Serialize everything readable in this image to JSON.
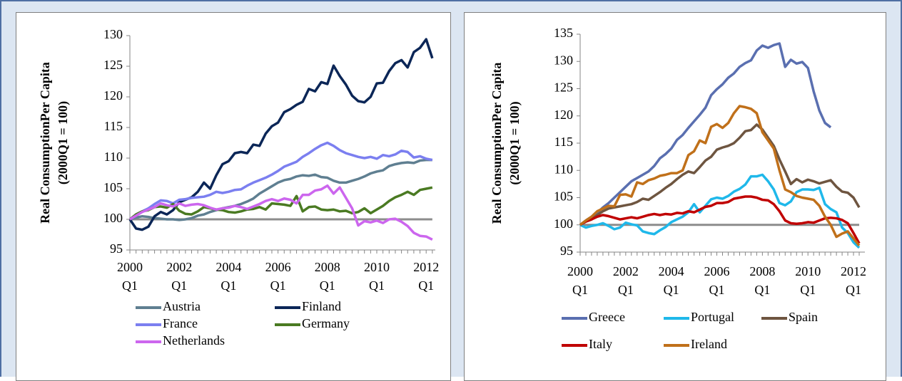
{
  "chart_data": [
    {
      "type": "line",
      "y_label": [
        "Real ConsumptionPer Capita",
        "(2000Q1 = 100)"
      ],
      "categories": [
        "2000\nQ1",
        null,
        null,
        null,
        null,
        null,
        null,
        null,
        "2002\nQ1",
        null,
        null,
        null,
        null,
        null,
        null,
        null,
        "2004\nQ1",
        null,
        null,
        null,
        null,
        null,
        null,
        null,
        "2006\nQ1",
        null,
        null,
        null,
        null,
        null,
        null,
        null,
        "2008\nQ1",
        null,
        null,
        null,
        null,
        null,
        null,
        null,
        "2010\nQ1",
        null,
        null,
        null,
        null,
        null,
        null,
        null,
        "2012\nQ1",
        null
      ],
      "ylim": [
        95,
        130
      ],
      "yticks": [
        95,
        100,
        105,
        110,
        115,
        120,
        125,
        130
      ],
      "reference_line": 100,
      "reference_color": "#8c8c8c",
      "series": [
        {
          "name": "Austria",
          "color": "#5f7f91",
          "values": [
            100,
            100.3,
            100.5,
            100.4,
            100.2,
            100.1,
            100.0,
            100.0,
            99.9,
            100.0,
            100.2,
            100.6,
            100.8,
            101.2,
            101.5,
            101.8,
            102.0,
            102.2,
            102.5,
            102.9,
            103.4,
            104.2,
            104.8,
            105.4,
            106.0,
            106.4,
            106.6,
            107.0,
            107.2,
            107.1,
            107.3,
            106.9,
            106.8,
            106.3,
            106.0,
            106.0,
            106.3,
            106.6,
            107.0,
            107.5,
            107.8,
            108.0,
            108.7,
            109.0,
            109.2,
            109.3,
            109.2,
            109.6,
            109.7,
            109.7
          ]
        },
        {
          "name": "Finland",
          "color": "#0b2657",
          "values": [
            100,
            98.5,
            98.3,
            98.8,
            100.5,
            101.2,
            100.8,
            101.5,
            102.8,
            103.2,
            103.6,
            104.5,
            106.0,
            105.0,
            107.2,
            109.0,
            109.5,
            110.8,
            111.0,
            110.8,
            112.2,
            112.0,
            114.0,
            115.2,
            115.8,
            117.5,
            118.0,
            118.7,
            119.2,
            121.3,
            120.9,
            122.4,
            122.1,
            125.1,
            123.4,
            122.0,
            120.2,
            119.3,
            119.1,
            120.0,
            122.2,
            122.3,
            124.2,
            125.5,
            126.0,
            124.8,
            127.3,
            128.0,
            129.4,
            126.3
          ]
        },
        {
          "name": "France",
          "color": "#7b7ff0",
          "values": [
            100,
            100.8,
            101.3,
            101.8,
            102.5,
            103.1,
            103.0,
            102.6,
            103.2,
            103.3,
            103.5,
            103.6,
            103.7,
            104.0,
            104.5,
            104.3,
            104.5,
            104.8,
            104.9,
            105.5,
            106.0,
            106.4,
            106.8,
            107.3,
            107.9,
            108.6,
            109.0,
            109.4,
            110.2,
            110.8,
            111.5,
            112.1,
            112.5,
            112.0,
            111.3,
            110.8,
            110.5,
            110.2,
            110.0,
            110.2,
            109.9,
            110.5,
            110.3,
            110.6,
            111.2,
            111.0,
            110.1,
            110.3,
            109.9,
            109.7
          ]
        },
        {
          "name": "Germany",
          "color": "#4a7a22",
          "values": [
            100,
            100.8,
            101.3,
            101.5,
            102.0,
            102.1,
            101.9,
            102.5,
            101.4,
            100.9,
            100.8,
            101.3,
            102.0,
            101.8,
            101.6,
            101.5,
            101.2,
            101.1,
            101.3,
            101.6,
            101.7,
            102.0,
            101.6,
            102.6,
            102.5,
            102.4,
            102.2,
            103.8,
            101.3,
            102.0,
            102.1,
            101.6,
            101.5,
            101.6,
            101.3,
            101.4,
            101.0,
            101.2,
            101.8,
            101.0,
            101.6,
            102.2,
            103.0,
            103.6,
            104.0,
            104.5,
            104.0,
            104.8,
            105.0,
            105.2
          ]
        },
        {
          "name": "Netherlands",
          "color": "#cc66ee",
          "values": [
            100,
            100.6,
            101.2,
            101.6,
            102.0,
            102.6,
            102.3,
            102.1,
            102.6,
            102.2,
            102.4,
            102.5,
            102.3,
            101.9,
            101.6,
            101.8,
            101.9,
            102.2,
            102.0,
            101.7,
            102.1,
            102.5,
            103.0,
            103.3,
            103.0,
            103.4,
            103.2,
            102.6,
            104.0,
            104.0,
            104.7,
            104.9,
            105.5,
            104.2,
            105.2,
            103.5,
            101.8,
            99.0,
            99.7,
            99.5,
            99.8,
            99.4,
            100.0,
            100.1,
            99.6,
            98.9,
            97.8,
            97.3,
            97.2,
            96.7
          ]
        }
      ]
    },
    {
      "type": "line",
      "y_label": [
        "Real ConsumptionPer Capita",
        "(2000Q1 = 100)"
      ],
      "categories": [
        "2000\nQ1",
        null,
        null,
        null,
        null,
        null,
        null,
        null,
        "2002\nQ1",
        null,
        null,
        null,
        null,
        null,
        null,
        null,
        "2004\nQ1",
        null,
        null,
        null,
        null,
        null,
        null,
        null,
        "2006\nQ1",
        null,
        null,
        null,
        null,
        null,
        null,
        null,
        "2008\nQ1",
        null,
        null,
        null,
        null,
        null,
        null,
        null,
        "2010\nQ1",
        null,
        null,
        null,
        null,
        null,
        null,
        null,
        "2012\nQ1",
        null
      ],
      "ylim": [
        95,
        135
      ],
      "yticks": [
        95,
        100,
        105,
        110,
        115,
        120,
        125,
        130,
        135
      ],
      "reference_line": 100,
      "reference_color": "#8c8c8c",
      "series": [
        {
          "name": "Greece",
          "color": "#5a6fb0",
          "values": [
            100,
            100.8,
            101.5,
            102.2,
            103.2,
            104.0,
            105.0,
            106.0,
            107.0,
            108.0,
            108.6,
            109.2,
            109.8,
            110.8,
            112.2,
            113.0,
            114.0,
            115.6,
            116.5,
            117.8,
            119.0,
            120.2,
            121.5,
            123.8,
            124.9,
            125.8,
            127.0,
            127.8,
            129.0,
            129.7,
            130.2,
            132.0,
            132.9,
            132.5,
            133.0,
            133.3,
            129.0,
            130.3,
            129.6,
            129.9,
            128.8,
            124.5,
            121.0,
            118.7,
            117.9,
            null,
            null,
            null,
            null,
            null
          ]
        },
        {
          "name": "Portugal",
          "color": "#1fb8ea",
          "values": [
            100,
            99.5,
            99.8,
            100.0,
            100.3,
            99.8,
            99.2,
            99.5,
            100.4,
            100.1,
            99.9,
            98.8,
            98.5,
            98.3,
            99.0,
            99.6,
            100.5,
            101.0,
            101.5,
            102.3,
            103.8,
            102.3,
            103.5,
            104.7,
            105.0,
            104.8,
            105.3,
            106.1,
            106.6,
            107.4,
            108.9,
            108.9,
            109.2,
            108.0,
            106.5,
            104.0,
            103.6,
            104.3,
            106.0,
            106.5,
            106.5,
            106.4,
            106.8,
            103.8,
            102.9,
            102.3,
            99.5,
            98.5,
            96.8,
            95.8
          ]
        },
        {
          "name": "Spain",
          "color": "#6e5540",
          "values": [
            100,
            100.6,
            101.0,
            101.8,
            102.5,
            103.0,
            103.2,
            103.4,
            103.6,
            103.8,
            104.2,
            104.8,
            104.6,
            105.3,
            106.0,
            106.8,
            107.5,
            108.4,
            109.2,
            109.8,
            109.5,
            110.6,
            111.8,
            112.5,
            113.8,
            114.2,
            114.5,
            115.0,
            116.0,
            117.2,
            117.4,
            118.4,
            117.5,
            116.0,
            114.5,
            112.0,
            109.8,
            107.5,
            108.4,
            107.8,
            108.3,
            108.0,
            107.6,
            107.9,
            108.2,
            107.0,
            106.1,
            105.9,
            105.0,
            103.2
          ]
        },
        {
          "name": "Italy",
          "color": "#c00000",
          "values": [
            100,
            100.6,
            101.0,
            101.5,
            101.8,
            101.6,
            101.3,
            101.0,
            101.2,
            101.4,
            101.2,
            101.5,
            101.8,
            102.0,
            101.8,
            102.0,
            101.9,
            102.2,
            102.1,
            102.5,
            102.3,
            102.8,
            103.3,
            103.5,
            104.0,
            104.0,
            104.2,
            104.8,
            105.0,
            105.2,
            105.2,
            105.0,
            104.6,
            104.5,
            103.8,
            102.5,
            100.8,
            100.3,
            100.2,
            100.3,
            100.5,
            100.4,
            100.8,
            101.2,
            101.3,
            101.2,
            100.9,
            100.3,
            98.5,
            96.6
          ]
        },
        {
          "name": "Ireland",
          "color": "#c0701a",
          "values": [
            100,
            100.8,
            101.5,
            102.5,
            103.0,
            103.5,
            103.4,
            105.5,
            105.6,
            105.2,
            107.8,
            107.5,
            108.2,
            108.5,
            109.0,
            109.2,
            109.5,
            109.5,
            110.0,
            112.8,
            113.5,
            115.5,
            115.0,
            118.0,
            118.5,
            117.8,
            118.7,
            120.5,
            121.8,
            121.6,
            121.3,
            120.5,
            117.0,
            115.5,
            114.0,
            110.0,
            106.5,
            106.0,
            105.3,
            105.0,
            104.8,
            104.6,
            103.5,
            101.5,
            100.0,
            97.8,
            98.4,
            98.8,
            97.5,
            96.2
          ]
        }
      ]
    }
  ]
}
